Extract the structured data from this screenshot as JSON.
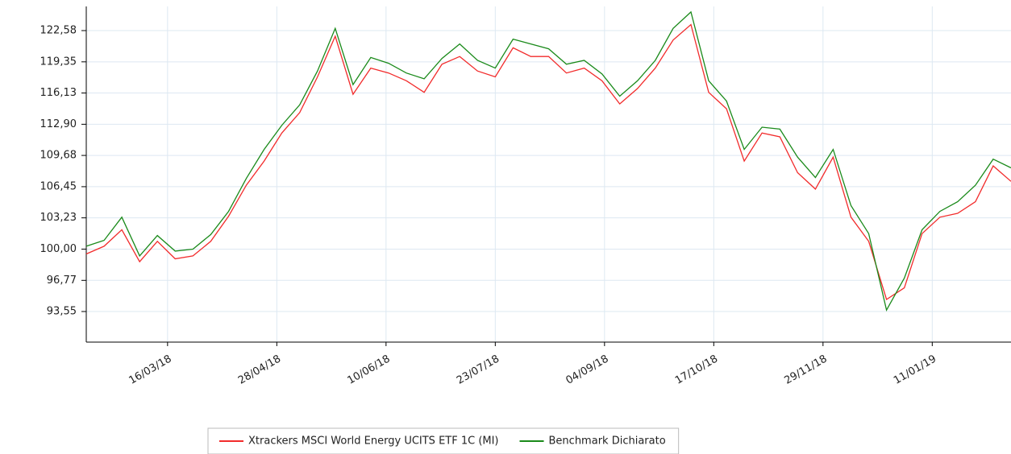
{
  "chart_data": {
    "type": "line",
    "x": [
      "2018-02-12",
      "2018-02-19",
      "2018-02-26",
      "2018-03-05",
      "2018-03-12",
      "2018-03-19",
      "2018-03-26",
      "2018-04-02",
      "2018-04-09",
      "2018-04-16",
      "2018-04-23",
      "2018-04-30",
      "2018-05-07",
      "2018-05-14",
      "2018-05-21",
      "2018-05-28",
      "2018-06-04",
      "2018-06-11",
      "2018-06-18",
      "2018-06-25",
      "2018-07-02",
      "2018-07-09",
      "2018-07-16",
      "2018-07-23",
      "2018-07-30",
      "2018-08-06",
      "2018-08-13",
      "2018-08-20",
      "2018-08-27",
      "2018-09-03",
      "2018-09-10",
      "2018-09-17",
      "2018-09-24",
      "2018-10-01",
      "2018-10-08",
      "2018-10-15",
      "2018-10-22",
      "2018-10-29",
      "2018-11-05",
      "2018-11-12",
      "2018-11-19",
      "2018-11-26",
      "2018-12-03",
      "2018-12-10",
      "2018-12-17",
      "2018-12-24",
      "2018-12-31",
      "2019-01-07",
      "2019-01-14",
      "2019-01-21",
      "2019-01-28",
      "2019-02-04",
      "2019-02-11"
    ],
    "series": [
      {
        "name": "Xtrackers MSCI World Energy UCITS ETF 1C (MI)",
        "color": "#f22b2b",
        "values": [
          99.5,
          100.3,
          102.0,
          98.7,
          100.8,
          99.0,
          99.3,
          100.8,
          103.4,
          106.6,
          109.1,
          112.0,
          114.1,
          117.8,
          122.0,
          116.0,
          118.7,
          118.2,
          117.4,
          116.2,
          119.1,
          119.9,
          118.4,
          117.8,
          120.8,
          119.9,
          119.9,
          118.2,
          118.7,
          117.4,
          115.0,
          116.6,
          118.7,
          121.6,
          123.2,
          116.2,
          114.5,
          109.1,
          112.0,
          111.6,
          107.9,
          106.2,
          109.5,
          103.3,
          100.8,
          94.8,
          96.0,
          101.6,
          103.3,
          103.7,
          104.9,
          108.6,
          107.0
        ]
      },
      {
        "name": "Benchmark Dichiarato",
        "color": "#1a8a1a",
        "values": [
          100.3,
          100.9,
          103.3,
          99.3,
          101.4,
          99.8,
          100.0,
          101.5,
          103.9,
          107.3,
          110.3,
          112.8,
          114.9,
          118.4,
          122.8,
          117.0,
          119.8,
          119.2,
          118.2,
          117.6,
          119.7,
          121.2,
          119.5,
          118.7,
          121.7,
          121.2,
          120.7,
          119.1,
          119.5,
          118.1,
          115.8,
          117.4,
          119.5,
          122.8,
          124.5,
          117.4,
          115.3,
          110.3,
          112.6,
          112.4,
          109.5,
          107.4,
          110.3,
          104.5,
          101.6,
          93.7,
          97.0,
          102.0,
          103.9,
          104.9,
          106.6,
          109.3,
          108.4
        ]
      }
    ],
    "xlim": [
      "2018-02-12",
      "2019-02-11"
    ],
    "xticks": [
      {
        "value": "2018-03-16",
        "label": "16/03/18"
      },
      {
        "value": "2018-04-28",
        "label": "28/04/18"
      },
      {
        "value": "2018-06-10",
        "label": "10/06/18"
      },
      {
        "value": "2018-07-23",
        "label": "23/07/18"
      },
      {
        "value": "2018-09-04",
        "label": "04/09/18"
      },
      {
        "value": "2018-10-17",
        "label": "17/10/18"
      },
      {
        "value": "2018-11-29",
        "label": "29/11/18"
      },
      {
        "value": "2019-01-11",
        "label": "11/01/19"
      }
    ],
    "ylim": [
      90.39,
      125.74
    ],
    "yticks": [
      {
        "value": 93.55,
        "label": "93,55"
      },
      {
        "value": 96.77,
        "label": "96,77"
      },
      {
        "value": 100,
        "label": "100,00"
      },
      {
        "value": 103.23,
        "label": "103,23"
      },
      {
        "value": 106.45,
        "label": "106,45"
      },
      {
        "value": 109.68,
        "label": "109,68"
      },
      {
        "value": 112.9,
        "label": "112,90"
      },
      {
        "value": 116.13,
        "label": "116,13"
      },
      {
        "value": 119.35,
        "label": "119,35"
      },
      {
        "value": 122.58,
        "label": "122,58"
      }
    ],
    "grid": true,
    "legend": "bottom"
  }
}
